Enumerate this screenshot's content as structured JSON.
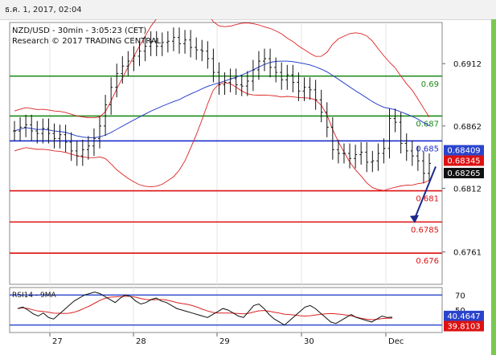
{
  "header": {
    "datetime": "ธ.ค. 1, 2017, 02:04"
  },
  "chart_data": {
    "type": "line",
    "instrument": "NZD/USD - 30min - 3:05:23 (CET)",
    "credit": "Research © 2017 TRADING CENTRAL",
    "price_axis": {
      "ticks": [
        "0.6912",
        "0.6862",
        "0.6812",
        "0.6761"
      ],
      "ylim": [
        0.6735,
        0.6945
      ]
    },
    "x_labels": [
      "27",
      "28",
      "29",
      "30",
      "Dec"
    ],
    "levels": [
      {
        "value": 0.6902,
        "label": "0.69",
        "color": "#1a8a1a"
      },
      {
        "value": 0.687,
        "label": "0.687",
        "color": "#1a8a1a"
      },
      {
        "value": 0.685,
        "label": "0.685",
        "color": "#1a2ccc"
      },
      {
        "value": 0.681,
        "label": "0.681",
        "color": "#dd1111"
      },
      {
        "value": 0.6785,
        "label": "0.6785",
        "color": "#dd1111"
      },
      {
        "value": 0.676,
        "label": "0.676",
        "color": "#dd1111"
      }
    ],
    "price_tags": [
      {
        "value": 0.68409,
        "label": "0.68409",
        "bg": "#2a44cc",
        "fg": "#ffffff"
      },
      {
        "value": 0.68345,
        "label": "0.68345",
        "bg": "#dd1111",
        "fg": "#ffffff"
      },
      {
        "value": 0.68265,
        "label": "0.68265",
        "bg": "#111111",
        "fg": "#ffffff"
      }
    ],
    "price_series": [
      0.6858,
      0.6861,
      0.6863,
      0.6858,
      0.6856,
      0.686,
      0.6856,
      0.6852,
      0.6855,
      0.6849,
      0.6842,
      0.6838,
      0.6843,
      0.6846,
      0.6852,
      0.6862,
      0.6879,
      0.6893,
      0.6904,
      0.691,
      0.6914,
      0.6918,
      0.6922,
      0.6926,
      0.693,
      0.6926,
      0.6929,
      0.693,
      0.6933,
      0.6928,
      0.6931,
      0.6925,
      0.6923,
      0.6922,
      0.6916,
      0.6905,
      0.6895,
      0.6897,
      0.69,
      0.6895,
      0.6894,
      0.6898,
      0.6907,
      0.6914,
      0.6916,
      0.6909,
      0.6905,
      0.6899,
      0.6903,
      0.6897,
      0.689,
      0.6893,
      0.6891,
      0.6883,
      0.6873,
      0.6861,
      0.6843,
      0.684,
      0.684,
      0.6836,
      0.6839,
      0.6841,
      0.6833,
      0.6834,
      0.684,
      0.6844,
      0.6868,
      0.6865,
      0.6848,
      0.6842,
      0.6838,
      0.6834,
      0.6824,
      0.6832
    ],
    "bollinger": {
      "period": 20,
      "k": 2
    },
    "moving_average": {
      "period": 30
    },
    "rsi": {
      "label": "RSI14 - 9MA",
      "ticks": [
        "70",
        "50",
        "30"
      ],
      "ylim": [
        20,
        80
      ],
      "value_tag": {
        "value": 40.4647,
        "label": "40.4647",
        "bg": "#2a44cc"
      },
      "ma_tag": {
        "value": 39.8103,
        "label": "39.8103",
        "bg": "#dd1111"
      },
      "series": [
        52,
        54,
        50,
        45,
        42,
        46,
        40,
        38,
        44,
        50,
        56,
        62,
        66,
        70,
        72,
        74,
        72,
        68,
        64,
        60,
        66,
        70,
        68,
        62,
        58,
        60,
        64,
        66,
        62,
        60,
        56,
        52,
        50,
        48,
        46,
        44,
        42,
        40,
        44,
        48,
        52,
        50,
        46,
        42,
        40,
        48,
        56,
        58,
        52,
        44,
        38,
        34,
        30,
        36,
        42,
        48,
        54,
        56,
        52,
        46,
        40,
        34,
        32,
        36,
        40,
        44,
        40,
        38,
        36,
        34,
        38,
        42,
        40,
        40.46
      ]
    }
  }
}
